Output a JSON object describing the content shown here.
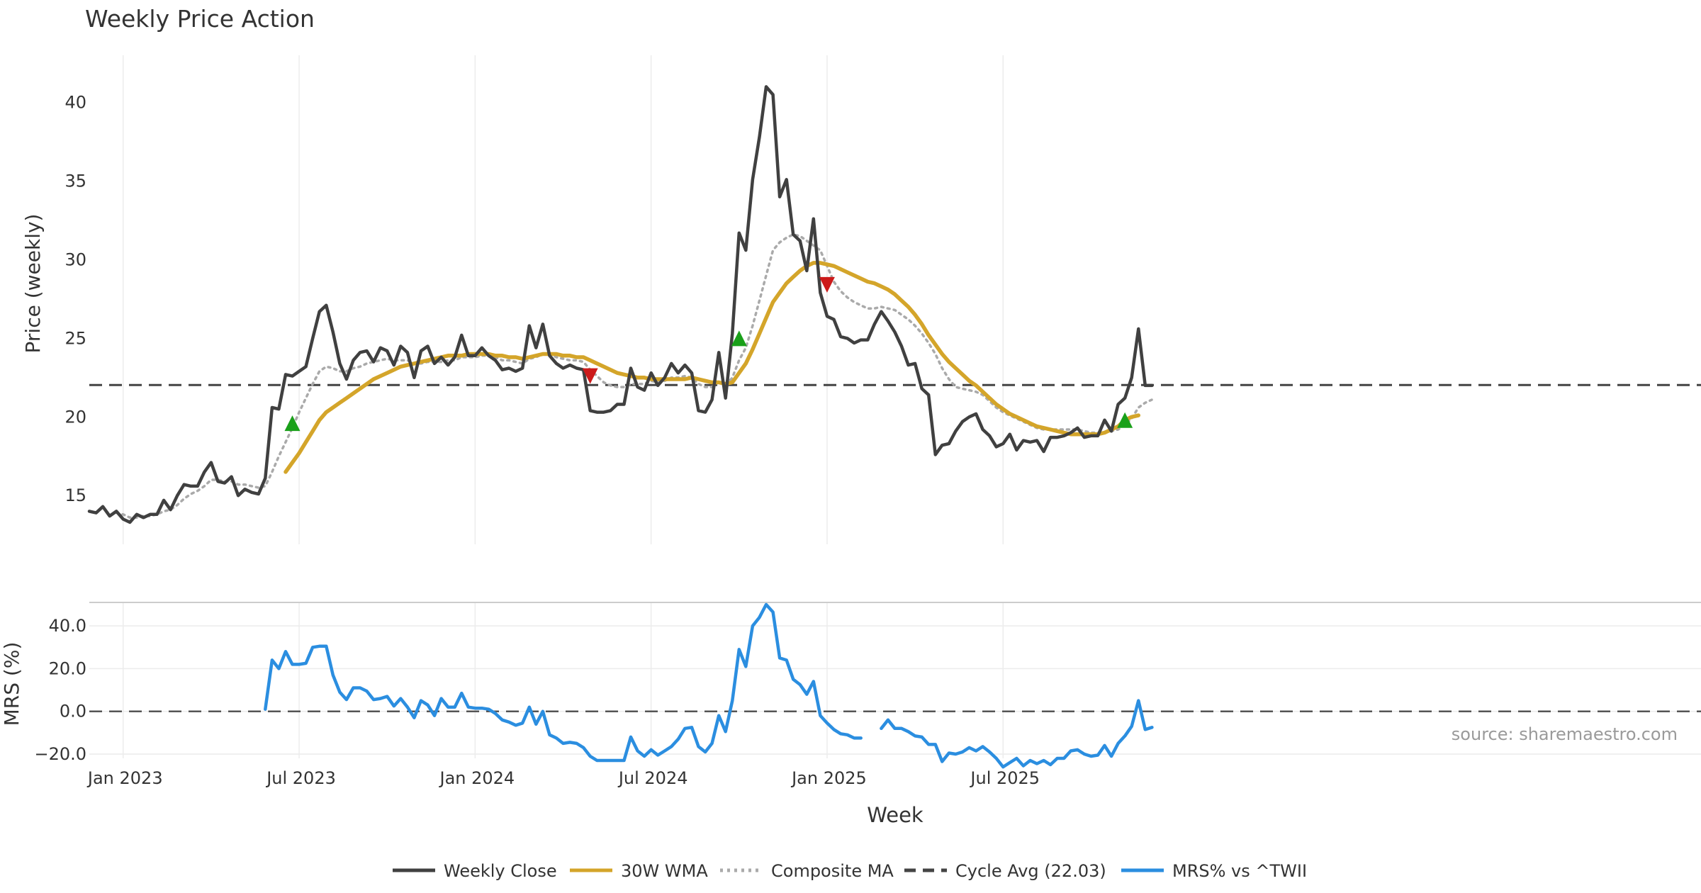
{
  "chart_data": [
    {
      "type": "line",
      "title": "Weekly Price Action",
      "xlabel": "",
      "ylabel": "Price (weekly)",
      "ylim": [
        11.9,
        43.0
      ],
      "yticks": [
        15,
        20,
        25,
        30,
        35,
        40
      ],
      "x_start": "2022-12-10",
      "x_step_weeks": 1,
      "series": [
        {
          "name": "Weekly Close",
          "color": "#404040",
          "style": "solid",
          "values": [
            14.0,
            13.9,
            14.3,
            13.7,
            14.0,
            13.5,
            13.3,
            13.8,
            13.6,
            13.8,
            13.8,
            14.7,
            14.1,
            15.0,
            15.7,
            15.6,
            15.6,
            16.5,
            17.1,
            15.9,
            15.8,
            16.2,
            15.0,
            15.4,
            15.2,
            15.1,
            16.1,
            20.6,
            20.5,
            22.7,
            22.6,
            22.9,
            23.2,
            25.0,
            26.7,
            27.1,
            25.4,
            23.4,
            22.4,
            23.6,
            24.1,
            24.2,
            23.5,
            24.4,
            24.2,
            23.3,
            24.5,
            24.1,
            22.5,
            24.2,
            24.5,
            23.4,
            23.8,
            23.3,
            23.8,
            25.2,
            23.9,
            23.9,
            24.4,
            23.9,
            23.6,
            23.0,
            23.1,
            22.9,
            23.1,
            25.8,
            24.4,
            25.9,
            23.9,
            23.4,
            23.1,
            23.3,
            23.1,
            23.0,
            20.4,
            20.3,
            20.3,
            20.4,
            20.8,
            20.8,
            23.1,
            21.9,
            21.7,
            22.8,
            22.0,
            22.5,
            23.4,
            22.8,
            23.3,
            22.8,
            20.4,
            20.3,
            21.1,
            24.1,
            21.2,
            25.3,
            31.7,
            30.6,
            35.1,
            37.8,
            41.0,
            40.5,
            34.0,
            35.1,
            31.6,
            31.2,
            29.3,
            32.6,
            27.9,
            26.4,
            26.2,
            25.1,
            25.0,
            24.7,
            24.9,
            24.9,
            25.9,
            26.7,
            26.1,
            25.4,
            24.5,
            23.3,
            23.4,
            21.8,
            21.4,
            17.6,
            18.2,
            18.3,
            19.1,
            19.7,
            20.0,
            20.2,
            19.2,
            18.8,
            18.1,
            18.3,
            18.9,
            17.9,
            18.5,
            18.4,
            18.5,
            17.8,
            18.7,
            18.7,
            18.8,
            19.0,
            19.3,
            18.7,
            18.8,
            18.8,
            19.8,
            19.1,
            20.8,
            21.2,
            22.5,
            25.6,
            22.0,
            22.0
          ]
        },
        {
          "name": "30W WMA",
          "color": "#D4A52A",
          "style": "solid",
          "values": [
            null,
            null,
            null,
            null,
            null,
            null,
            null,
            null,
            null,
            null,
            null,
            null,
            null,
            null,
            null,
            null,
            null,
            null,
            null,
            null,
            null,
            null,
            null,
            null,
            null,
            null,
            null,
            null,
            null,
            16.5,
            17.1,
            17.7,
            18.4,
            19.1,
            19.8,
            20.3,
            20.6,
            20.9,
            21.2,
            21.5,
            21.8,
            22.1,
            22.4,
            22.6,
            22.8,
            23.0,
            23.2,
            23.3,
            23.4,
            23.5,
            23.6,
            23.7,
            23.8,
            23.9,
            23.9,
            23.9,
            24.0,
            24.0,
            24.0,
            24.0,
            23.9,
            23.9,
            23.8,
            23.8,
            23.7,
            23.8,
            23.9,
            24.0,
            24.0,
            24.0,
            23.9,
            23.9,
            23.8,
            23.8,
            23.6,
            23.4,
            23.2,
            23.0,
            22.8,
            22.7,
            22.6,
            22.5,
            22.5,
            22.4,
            22.4,
            22.4,
            22.4,
            22.4,
            22.4,
            22.5,
            22.4,
            22.3,
            22.2,
            22.2,
            22.1,
            22.2,
            22.8,
            23.4,
            24.3,
            25.3,
            26.3,
            27.3,
            27.9,
            28.5,
            28.9,
            29.3,
            29.6,
            29.8,
            29.8,
            29.7,
            29.6,
            29.4,
            29.2,
            29.0,
            28.8,
            28.6,
            28.5,
            28.3,
            28.1,
            27.8,
            27.4,
            27.0,
            26.5,
            25.9,
            25.2,
            24.6,
            24.0,
            23.5,
            23.1,
            22.7,
            22.3,
            22.0,
            21.6,
            21.2,
            20.8,
            20.5,
            20.2,
            20.0,
            19.8,
            19.6,
            19.4,
            19.3,
            19.2,
            19.1,
            19.0,
            18.9,
            18.9,
            18.9,
            18.9,
            18.9,
            19.0,
            19.2,
            19.4,
            19.8,
            20.0,
            20.1
          ]
        },
        {
          "name": "Composite MA",
          "color": "#AAAAAA",
          "style": "dotted",
          "values": [
            null,
            null,
            null,
            null,
            13.9,
            13.8,
            13.6,
            13.6,
            13.7,
            13.7,
            13.8,
            14.0,
            14.1,
            14.4,
            14.8,
            15.1,
            15.3,
            15.6,
            16.0,
            16.0,
            15.9,
            15.9,
            15.7,
            15.7,
            15.6,
            15.5,
            15.6,
            16.5,
            17.5,
            18.4,
            19.3,
            20.3,
            21.2,
            22.1,
            22.9,
            23.2,
            23.1,
            22.9,
            22.9,
            23.1,
            23.2,
            23.4,
            23.5,
            23.6,
            23.7,
            23.6,
            23.6,
            23.6,
            23.4,
            23.4,
            23.5,
            23.5,
            23.5,
            23.6,
            23.6,
            23.8,
            23.8,
            23.8,
            23.9,
            23.9,
            23.8,
            23.6,
            23.6,
            23.5,
            23.4,
            23.7,
            23.8,
            24.0,
            24.0,
            23.8,
            23.7,
            23.6,
            23.6,
            23.5,
            23.0,
            22.6,
            22.2,
            22.0,
            21.9,
            21.9,
            22.1,
            22.1,
            22.1,
            22.3,
            22.2,
            22.3,
            22.5,
            22.5,
            22.6,
            22.5,
            22.1,
            21.9,
            21.9,
            22.3,
            22.0,
            22.5,
            23.6,
            24.4,
            25.8,
            27.4,
            29.0,
            30.6,
            31.1,
            31.4,
            31.6,
            31.5,
            31.2,
            30.9,
            30.6,
            29.6,
            28.6,
            28.0,
            27.6,
            27.3,
            27.1,
            26.9,
            26.9,
            27.0,
            26.9,
            26.8,
            26.5,
            26.2,
            25.8,
            25.3,
            24.7,
            24.0,
            23.1,
            22.4,
            21.9,
            21.8,
            21.7,
            21.6,
            21.4,
            21.0,
            20.6,
            20.3,
            20.1,
            19.9,
            19.7,
            19.5,
            19.3,
            19.2,
            19.2,
            19.2,
            19.2,
            19.2,
            19.2,
            19.1,
            19.0,
            19.0,
            19.0,
            19.1,
            19.2,
            19.5,
            19.9,
            20.6,
            20.9,
            21.1
          ]
        },
        {
          "name": "Cycle Avg (22.03)",
          "color": "#444444",
          "style": "dashed",
          "values": [
            22.03
          ]
        }
      ],
      "signals": [
        {
          "type": "buy",
          "index": 30,
          "value": 19.6,
          "color": "#1AA01A"
        },
        {
          "type": "sell",
          "index": 74,
          "value": 22.6,
          "color": "#CC1A1A"
        },
        {
          "type": "buy",
          "index": 96,
          "value": 25.0,
          "color": "#1AA01A"
        },
        {
          "type": "sell",
          "index": 109,
          "value": 28.4,
          "color": "#CC1A1A"
        },
        {
          "type": "buy",
          "index": 153,
          "value": 19.8,
          "color": "#1AA01A"
        }
      ],
      "source_note": "source: sharemaestro.com"
    },
    {
      "type": "line",
      "title": "",
      "xlabel": "Week",
      "ylabel": "MRS (%)",
      "ylim": [
        -22,
        51
      ],
      "yticks": [
        -20,
        0,
        20,
        40
      ],
      "ytick_labels": [
        "−20.0",
        "0.0",
        "20.0",
        "40.0"
      ],
      "xticks": [
        {
          "index": 5,
          "label": "Jan 2023"
        },
        {
          "index": 31,
          "label": "Jul 2023"
        },
        {
          "index": 57,
          "label": "Jan 2024"
        },
        {
          "index": 83,
          "label": "Jul 2024"
        },
        {
          "index": 109,
          "label": "Jan 2025"
        },
        {
          "index": 135,
          "label": "Jul 2025"
        }
      ],
      "zero_line": 0,
      "series": [
        {
          "name": "MRS% vs ^TWII",
          "color": "#2B8EE0",
          "style": "solid",
          "values": [
            null,
            null,
            null,
            null,
            null,
            null,
            null,
            null,
            null,
            null,
            null,
            null,
            null,
            null,
            null,
            null,
            null,
            null,
            null,
            null,
            null,
            null,
            null,
            null,
            null,
            null,
            1.0,
            24.0,
            20.0,
            28.0,
            22.0,
            22.0,
            22.5,
            30.0,
            30.5,
            30.5,
            17.0,
            9.0,
            5.5,
            11.0,
            11.0,
            9.5,
            5.5,
            6.0,
            7.0,
            2.5,
            6.0,
            2.0,
            -3.0,
            5.0,
            3.0,
            -2.0,
            6.0,
            2.0,
            2.0,
            8.5,
            2.0,
            1.5,
            1.5,
            1.0,
            -1.0,
            -4.0,
            -5.0,
            -6.5,
            -5.5,
            2.0,
            -6.0,
            0.0,
            -11.0,
            -12.5,
            -15.0,
            -14.5,
            -15.0,
            -17.0,
            -21.0,
            -23.0,
            -23.0,
            -23.0,
            -23.0,
            -23.0,
            -12.0,
            -18.5,
            -21.0,
            -18.0,
            -20.5,
            -18.5,
            -16.5,
            -13.0,
            -8.0,
            -7.5,
            -16.5,
            -19.0,
            -15.0,
            -2.0,
            -9.5,
            5.0,
            29.0,
            21.0,
            40.0,
            44.0,
            50.0,
            46.5,
            25.0,
            24.0,
            15.0,
            12.5,
            8.0,
            14.0,
            -2.0,
            -5.5,
            -8.5,
            -10.5,
            -11.0,
            -12.5,
            -12.5,
            null,
            null,
            -8.0,
            -4.0,
            -8.0,
            -8.0,
            -9.5,
            -11.5,
            -12.0,
            -15.5,
            -15.5,
            -23.5,
            -19.5,
            -20.0,
            -19.0,
            -17.0,
            -18.5,
            -16.5,
            -19.0,
            -22.0,
            -26.0,
            -24.0,
            -22.0,
            -25.5,
            -23.0,
            -24.5,
            -23.0,
            -25.0,
            -22.0,
            -22.0,
            -18.5,
            -18.0,
            -20.0,
            -21.0,
            -20.5,
            -16.0,
            -21.0,
            -15.0,
            -11.5,
            -7.0,
            5.0,
            -8.5,
            -7.5
          ]
        }
      ]
    }
  ],
  "legend": {
    "items": [
      {
        "label": "Weekly Close",
        "color": "#404040",
        "style": "solid"
      },
      {
        "label": "30W WMA",
        "color": "#D4A52A",
        "style": "solid"
      },
      {
        "label": "Composite MA",
        "color": "#AAAAAA",
        "style": "dotted"
      },
      {
        "label": "Cycle Avg (22.03)",
        "color": "#444444",
        "style": "dashed"
      },
      {
        "label": "MRS% vs ^TWII",
        "color": "#2B8EE0",
        "style": "solid"
      }
    ]
  }
}
